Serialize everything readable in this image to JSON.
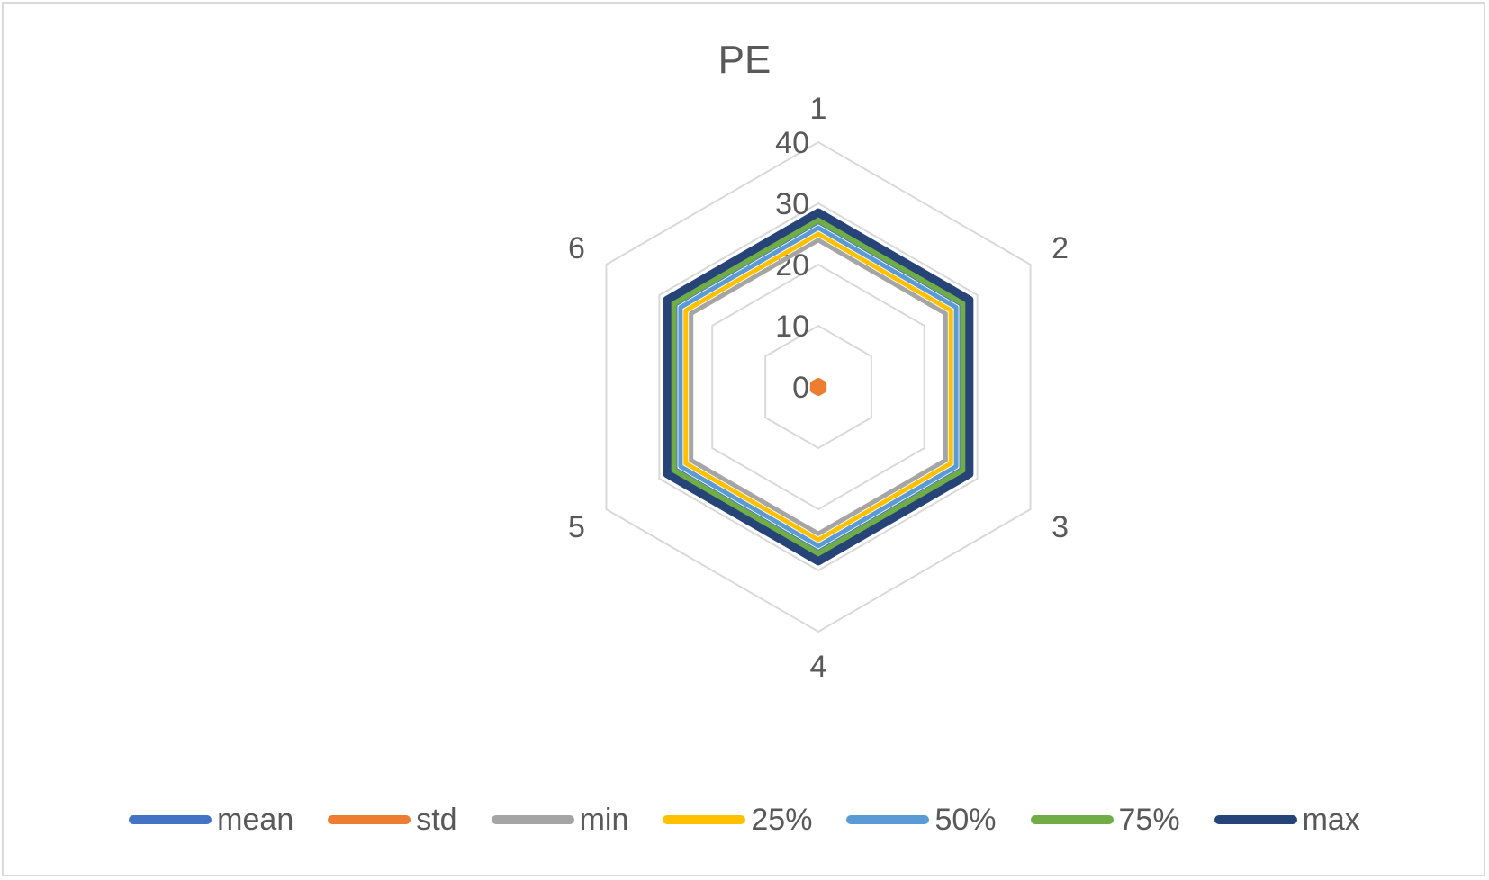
{
  "chart_data": {
    "type": "radar",
    "title": "PE",
    "categories": [
      "1",
      "2",
      "3",
      "4",
      "5",
      "6"
    ],
    "radial_ticks": [
      "0",
      "10",
      "20",
      "30",
      "40"
    ],
    "rlim": [
      0,
      40
    ],
    "grid": true,
    "legend_position": "bottom",
    "series": [
      {
        "name": "mean",
        "color": "#4472c4",
        "values": [
          27,
          27,
          27,
          27,
          27,
          27
        ]
      },
      {
        "name": "std",
        "color": "#ed7d31",
        "values": [
          0.8,
          0.8,
          0.8,
          0.8,
          0.8,
          0.8
        ]
      },
      {
        "name": "min",
        "color": "#a5a5a5",
        "values": [
          24,
          24,
          24,
          24,
          24,
          24
        ]
      },
      {
        "name": "25%",
        "color": "#ffc000",
        "values": [
          25,
          25,
          25,
          25,
          25,
          25
        ]
      },
      {
        "name": "50%",
        "color": "#5b9bd5",
        "values": [
          26,
          26,
          26,
          26,
          26,
          26
        ]
      },
      {
        "name": "75%",
        "color": "#70ad47",
        "values": [
          27.5,
          27.5,
          27.5,
          27.5,
          27.5,
          27.5
        ]
      },
      {
        "name": "max",
        "color": "#264478",
        "values": [
          28.5,
          28.5,
          28.5,
          28.5,
          28.5,
          28.5
        ]
      }
    ]
  }
}
